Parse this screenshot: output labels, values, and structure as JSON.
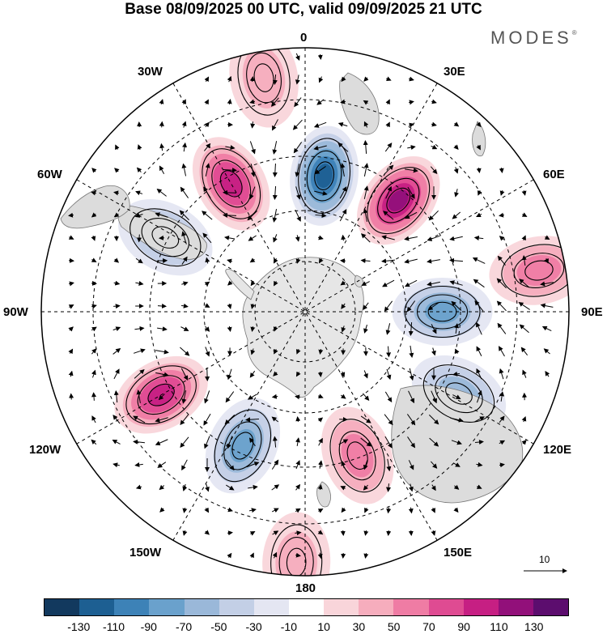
{
  "title": "Base 08/09/2025 00 UTC, valid 09/09/2025 21 UTC",
  "brand": {
    "name": "MODES",
    "mark": "®"
  },
  "labels": {
    "top": "0",
    "top_left": "30W",
    "top_right": "30E",
    "upper_left": "60W",
    "upper_right": "60E",
    "left": "90W",
    "right": "90E",
    "lower_left": "120W",
    "lower_right": "120E",
    "bottom_left": "150W",
    "bottom_right": "150E",
    "bottom": "180"
  },
  "reference_vector": {
    "value": "10"
  },
  "colorbar": {
    "colors": [
      "#12395e",
      "#1d5f92",
      "#3d82b7",
      "#6aa1cc",
      "#9ab8d9",
      "#c3cfe6",
      "#e4e6f2",
      "#ffffff",
      "#f9d5da",
      "#f6adbd",
      "#ef7ca4",
      "#df4b92",
      "#c61f83",
      "#92107a",
      "#5c0d6e"
    ],
    "ticks": [
      "-130",
      "-110",
      "-90",
      "-70",
      "-50",
      "-30",
      "-10",
      "10",
      "30",
      "50",
      "70",
      "90",
      "110",
      "130"
    ]
  },
  "anomaly_centers": [
    {
      "name": "neg-0",
      "bearing_deg": 8,
      "radius_frac": 0.52,
      "value": -120
    },
    {
      "name": "pos-35",
      "bearing_deg": 40,
      "radius_frac": 0.55,
      "value": 110
    },
    {
      "name": "pos-335",
      "bearing_deg": 330,
      "radius_frac": 0.56,
      "value": 100
    },
    {
      "name": "neg-300",
      "bearing_deg": 298,
      "radius_frac": 0.6,
      "value": -60
    },
    {
      "name": "neg-90",
      "bearing_deg": 90,
      "radius_frac": 0.52,
      "value": -80
    },
    {
      "name": "pos-70",
      "bearing_deg": 80,
      "radius_frac": 0.9,
      "value": 50
    },
    {
      "name": "pos-240",
      "bearing_deg": 240,
      "radius_frac": 0.63,
      "value": 100
    },
    {
      "name": "neg-210",
      "bearing_deg": 205,
      "radius_frac": 0.56,
      "value": -80
    },
    {
      "name": "neg-130",
      "bearing_deg": 118,
      "radius_frac": 0.66,
      "value": -60
    },
    {
      "name": "pos-160",
      "bearing_deg": 160,
      "radius_frac": 0.58,
      "value": 50
    },
    {
      "name": "pos-180",
      "bearing_deg": 182,
      "radius_frac": 0.95,
      "value": 30
    },
    {
      "name": "pos-350",
      "bearing_deg": 350,
      "radius_frac": 0.9,
      "value": 40
    }
  ]
}
